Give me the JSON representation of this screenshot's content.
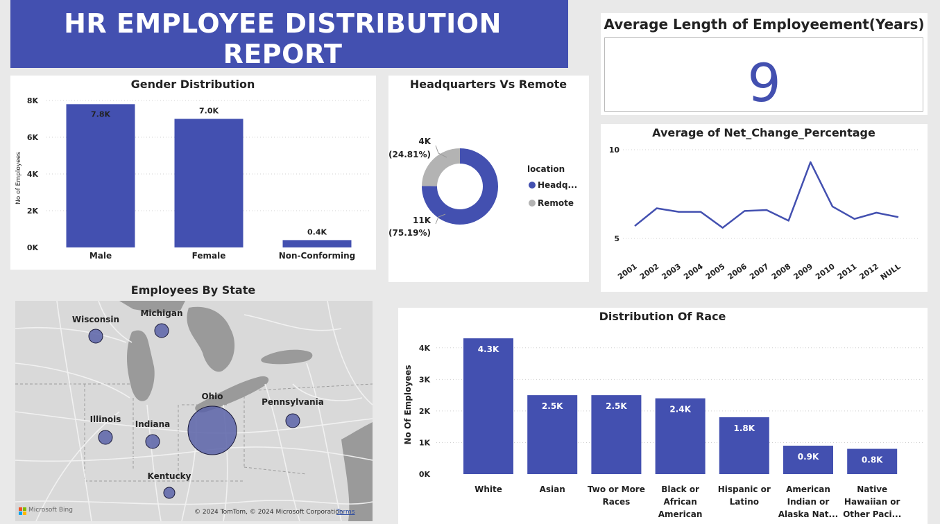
{
  "report_title": "HR EMPLOYEE DISTRIBUTION REPORT",
  "colors": {
    "primary": "#4350b0",
    "secondary": "#b3b3b3",
    "map_bubble": "#5a63a8"
  },
  "kpi": {
    "title": "Average Length of Employeement(Years)",
    "value": "9"
  },
  "chart_data": [
    {
      "id": "gender",
      "type": "bar",
      "title": "Gender Distribution",
      "ylabel": "No of Employees",
      "categories": [
        "Male",
        "Female",
        "Non-Conforming"
      ],
      "values": [
        7800,
        7000,
        400
      ],
      "data_labels": [
        "7.8K",
        "7.0K",
        "0.4K"
      ],
      "yticks": [
        0,
        2000,
        4000,
        6000,
        8000
      ],
      "ytick_labels": [
        "0K",
        "2K",
        "4K",
        "6K",
        "8K"
      ],
      "ylim": [
        0,
        8000
      ]
    },
    {
      "id": "location",
      "type": "pie",
      "title": "Headquarters Vs Remote",
      "legend_title": "location",
      "categories": [
        "Headquarters",
        "Remote"
      ],
      "legend_labels": [
        "Headq...",
        "Remote"
      ],
      "values": [
        75.19,
        24.81
      ],
      "data_labels": [
        [
          "11K",
          "(75.19%)"
        ],
        [
          "4K",
          "(24.81%)"
        ]
      ]
    },
    {
      "id": "net_change",
      "type": "line",
      "title": "Average of Net_Change_Percentage",
      "categories": [
        "2001",
        "2002",
        "2003",
        "2004",
        "2005",
        "2006",
        "2007",
        "2008",
        "2009",
        "2010",
        "2011",
        "2012",
        "NULL"
      ],
      "values": [
        5.7,
        6.7,
        6.5,
        6.5,
        5.6,
        6.55,
        6.6,
        6.0,
        9.3,
        6.8,
        6.1,
        6.45,
        6.2
      ],
      "yticks": [
        5,
        10
      ],
      "ytick_labels": [
        "5",
        "10"
      ],
      "ylim": [
        5,
        10
      ]
    },
    {
      "id": "race",
      "type": "bar",
      "title": "Distribution Of Race",
      "ylabel": "No Of Employees",
      "categories": [
        [
          "White"
        ],
        [
          "Asian"
        ],
        [
          "Two or More",
          "Races"
        ],
        [
          "Black or",
          "African",
          "American"
        ],
        [
          "Hispanic or",
          "Latino"
        ],
        [
          "American",
          "Indian or",
          "Alaska Nat..."
        ],
        [
          "Native",
          "Hawaiian or",
          "Other Paci..."
        ]
      ],
      "values": [
        4300,
        2500,
        2500,
        2400,
        1800,
        900,
        800
      ],
      "data_labels": [
        "4.3K",
        "2.5K",
        "2.5K",
        "2.4K",
        "1.8K",
        "0.9K",
        "0.8K"
      ],
      "yticks": [
        0,
        1000,
        2000,
        3000,
        4000
      ],
      "ytick_labels": [
        "0K",
        "1K",
        "2K",
        "3K",
        "4K"
      ],
      "ylim": [
        0,
        4500
      ]
    }
  ],
  "map": {
    "title": "Employees By State",
    "states": [
      {
        "name": "Wisconsin",
        "size": "small"
      },
      {
        "name": "Michigan",
        "size": "small"
      },
      {
        "name": "Illinois",
        "size": "small"
      },
      {
        "name": "Indiana",
        "size": "small"
      },
      {
        "name": "Ohio",
        "size": "large"
      },
      {
        "name": "Pennsylvania",
        "size": "small"
      },
      {
        "name": "Kentucky",
        "size": "tiny"
      }
    ],
    "attribution": "© 2024 TomTom, © 2024 Microsoft Corporation",
    "terms_label": "Terms",
    "bing_label": "Microsoft Bing"
  }
}
